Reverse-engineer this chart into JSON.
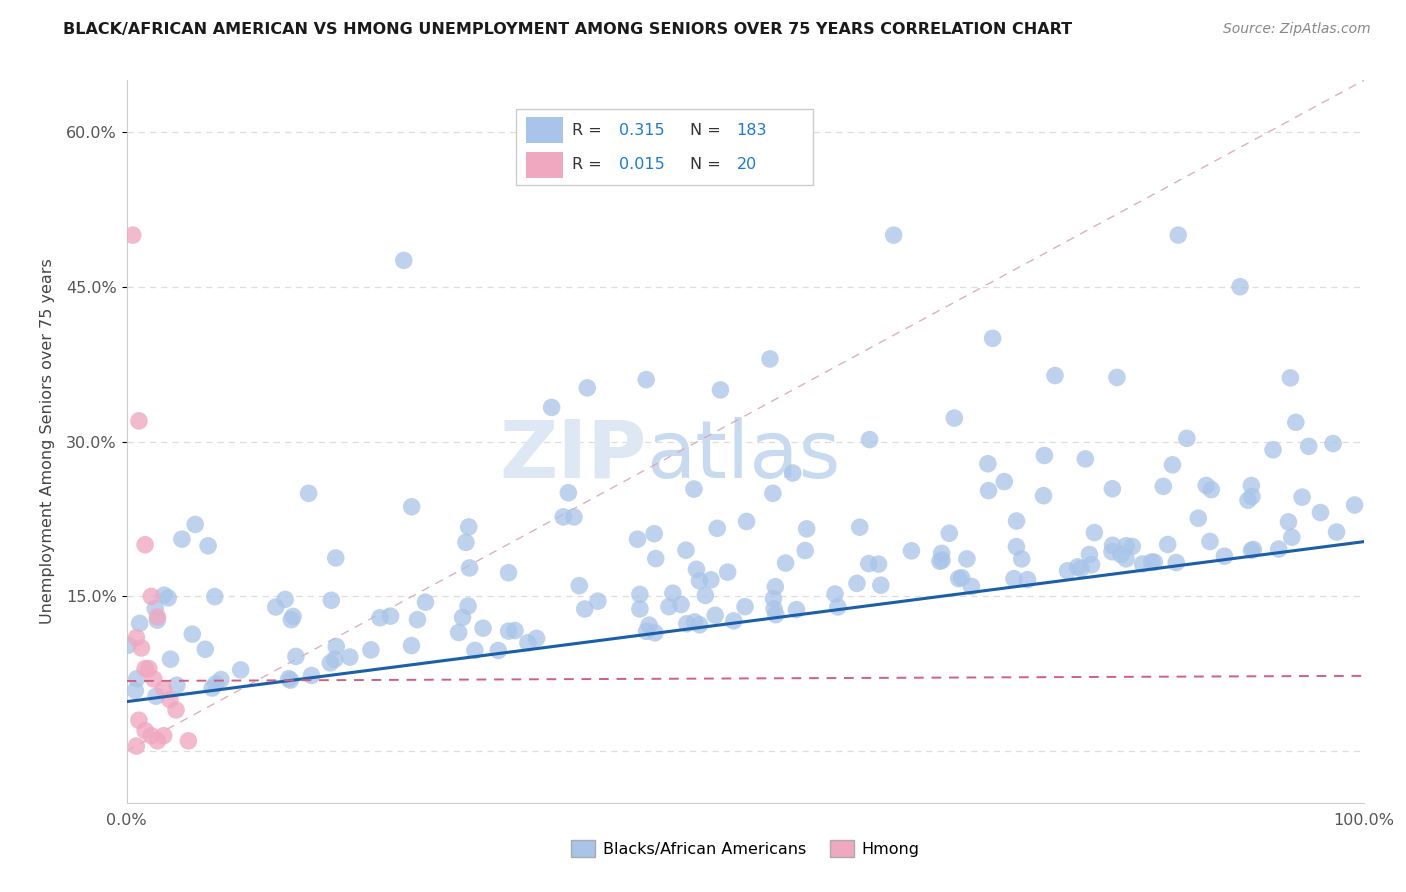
{
  "title": "BLACK/AFRICAN AMERICAN VS HMONG UNEMPLOYMENT AMONG SENIORS OVER 75 YEARS CORRELATION CHART",
  "source": "Source: ZipAtlas.com",
  "ylabel_label": "Unemployment Among Seniors over 75 years",
  "r_black": 0.315,
  "n_black": 183,
  "r_hmong": 0.015,
  "n_hmong": 20,
  "legend_labels": [
    "Blacks/African Americans",
    "Hmong"
  ],
  "blue_scatter_color": "#a8c4e8",
  "pink_scatter_color": "#f0a8c0",
  "blue_line_color": "#1a5fa8",
  "pink_line_color": "#d06080",
  "diag_line_color": "#d8a8b8",
  "text_color_r": "#444444",
  "text_blue": "#1a7adc",
  "background_color": "#ffffff",
  "watermark_color": "#dde8f4",
  "grid_color": "#dddddd",
  "xlim": [
    0.0,
    1.0
  ],
  "ylim": [
    -0.05,
    0.65
  ],
  "blue_intercept": 0.048,
  "blue_slope": 0.155,
  "pink_intercept": 0.068,
  "pink_slope": 0.005
}
